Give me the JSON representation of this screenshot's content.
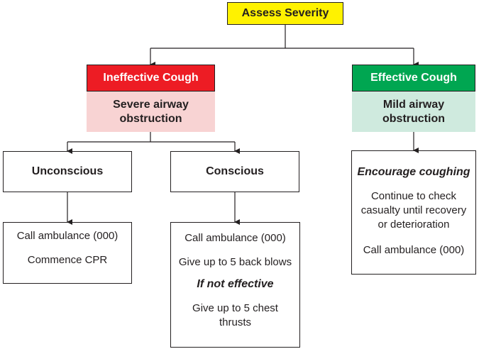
{
  "root": {
    "label": "Assess Severity",
    "color": "#fff200"
  },
  "left": {
    "header": "Ineffective Cough",
    "header_color": "#ed1c24",
    "description": "Severe airway obstruction",
    "description_color": "#f8d3d3",
    "unconscious": {
      "label": "Unconscious",
      "actions": [
        "Call ambulance (000)",
        "Commence CPR"
      ]
    },
    "conscious": {
      "label": "Conscious",
      "actions": [
        "Call ambulance (000)",
        "Give up to 5 back blows"
      ],
      "conditional": "If not effective",
      "followup": "Give up to 5 chest thrusts"
    }
  },
  "right": {
    "header": "Effective Cough",
    "header_color": "#00a651",
    "description": "Mild airway obstruction",
    "description_color": "#cfeade",
    "emphasis": "Encourage coughing",
    "actions": [
      "Continue to check casualty until recovery or deterioration",
      "Call ambulance (000)"
    ]
  }
}
